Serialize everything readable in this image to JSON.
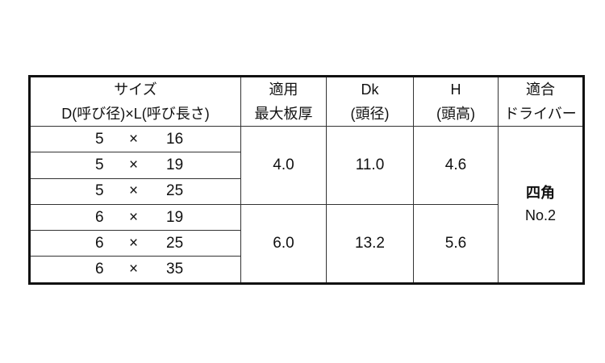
{
  "headers": {
    "size": [
      "サイズ",
      "D(呼び径)×L(呼び長さ)"
    ],
    "thickness": [
      "適用",
      "最大板厚"
    ],
    "dk": [
      "Dk",
      "(頭径)"
    ],
    "h": [
      "H",
      "(頭高)"
    ],
    "driver": [
      "適合",
      "ドライバー"
    ]
  },
  "rows": [
    {
      "d": "5",
      "x": "×",
      "l": "16"
    },
    {
      "d": "5",
      "x": "×",
      "l": "19"
    },
    {
      "d": "5",
      "x": "×",
      "l": "25"
    },
    {
      "d": "6",
      "x": "×",
      "l": "19"
    },
    {
      "d": "6",
      "x": "×",
      "l": "25"
    },
    {
      "d": "6",
      "x": "×",
      "l": "35"
    }
  ],
  "groups": [
    {
      "thickness": "4.0",
      "dk": "11.0",
      "h": "4.6"
    },
    {
      "thickness": "6.0",
      "dk": "13.2",
      "h": "5.6"
    }
  ],
  "driver": [
    "四角",
    "No.2"
  ]
}
